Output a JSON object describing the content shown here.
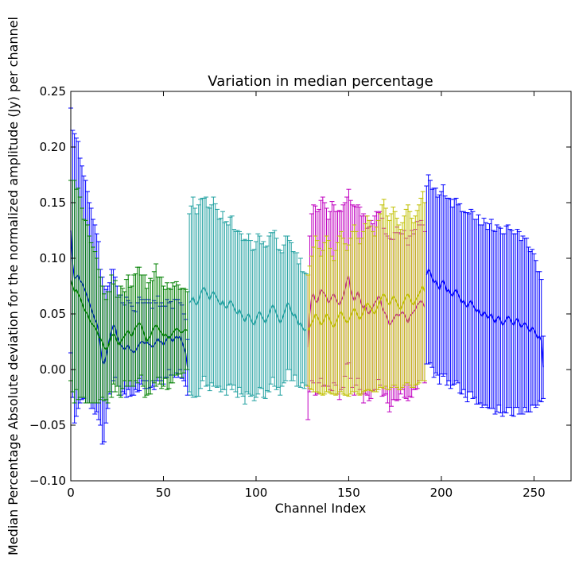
{
  "chart_data": {
    "type": "line",
    "title": "Variation in median percentage",
    "xlabel": "Channel Index",
    "ylabel": "Median Percentage Absolute deviation for the normalized amplitude (Jy) per channel",
    "xlim": [
      0,
      270
    ],
    "ylim": [
      -0.1,
      0.25
    ],
    "xticks": [
      0,
      50,
      100,
      150,
      200,
      250
    ],
    "xtick_labels": [
      "0",
      "50",
      "100",
      "150",
      "200",
      "250"
    ],
    "yticks": [
      -0.1,
      -0.05,
      0.0,
      0.05,
      0.1,
      0.15,
      0.2,
      0.25
    ],
    "ytick_labels": [
      "−0.10",
      "−0.05",
      "0.00",
      "0.05",
      "0.10",
      "0.15",
      "0.20",
      "0.25"
    ],
    "grid": false,
    "error_bars": true,
    "series": [
      {
        "color": "#0000ff",
        "x_start": 0,
        "values": [
          0.125,
          0.095,
          0.082,
          0.083,
          0.085,
          0.08,
          0.078,
          0.074,
          0.07,
          0.065,
          0.06,
          0.055,
          0.05,
          0.045,
          0.042,
          0.035,
          0.02,
          0.008,
          0.005,
          0.012,
          0.02,
          0.028,
          0.035,
          0.04,
          0.038,
          0.03,
          0.025,
          0.022,
          0.02,
          0.018,
          0.02,
          0.022,
          0.018,
          0.017,
          0.015,
          0.017,
          0.02,
          0.023,
          0.025,
          0.025,
          0.023,
          0.025,
          0.023,
          0.022,
          0.02,
          0.022,
          0.025,
          0.028,
          0.025,
          0.025,
          0.022,
          0.025,
          0.028,
          0.03,
          0.028,
          0.025,
          0.028,
          0.03,
          0.028,
          0.03,
          0.025,
          0.02,
          0.015,
          0.002
        ],
        "errors": [
          0.11,
          0.12,
          0.13,
          0.125,
          0.12,
          0.11,
          0.105,
          0.1,
          0.1,
          0.095,
          0.09,
          0.09,
          0.085,
          0.085,
          0.08,
          0.08,
          0.07,
          0.075,
          0.07,
          0.06,
          0.055,
          0.05,
          0.055,
          0.05,
          0.045,
          0.045,
          0.04,
          0.045,
          0.04,
          0.04,
          0.045,
          0.04,
          0.042,
          0.04,
          0.038,
          0.035,
          0.04,
          0.042,
          0.038,
          0.035,
          0.04,
          0.035,
          0.04,
          0.038,
          0.035,
          0.04,
          0.035,
          0.038,
          0.032,
          0.035,
          0.035,
          0.032,
          0.035,
          0.03,
          0.033,
          0.03,
          0.035,
          0.033,
          0.035,
          0.03,
          0.033,
          0.03,
          0.03,
          0.025
        ]
      },
      {
        "color": "#008000",
        "x_start": 0,
        "values": [
          0.08,
          0.075,
          0.07,
          0.072,
          0.068,
          0.065,
          0.06,
          0.055,
          0.052,
          0.05,
          0.045,
          0.042,
          0.04,
          0.038,
          0.035,
          0.03,
          0.028,
          0.025,
          0.02,
          0.018,
          0.02,
          0.025,
          0.03,
          0.032,
          0.03,
          0.025,
          0.022,
          0.025,
          0.028,
          0.03,
          0.033,
          0.035,
          0.032,
          0.03,
          0.035,
          0.038,
          0.04,
          0.042,
          0.04,
          0.035,
          0.03,
          0.025,
          0.028,
          0.03,
          0.035,
          0.038,
          0.04,
          0.038,
          0.035,
          0.033,
          0.03,
          0.032,
          0.03,
          0.028,
          0.03,
          0.033,
          0.035,
          0.037,
          0.036,
          0.034,
          0.033,
          0.035,
          0.036,
          0.035
        ],
        "errors": [
          0.09,
          0.095,
          0.1,
          0.09,
          0.095,
          0.09,
          0.085,
          0.08,
          0.082,
          0.08,
          0.075,
          0.072,
          0.07,
          0.068,
          0.065,
          0.06,
          0.055,
          0.05,
          0.048,
          0.045,
          0.05,
          0.045,
          0.055,
          0.045,
          0.05,
          0.04,
          0.045,
          0.05,
          0.045,
          0.04,
          0.048,
          0.05,
          0.042,
          0.045,
          0.05,
          0.048,
          0.052,
          0.05,
          0.045,
          0.05,
          0.055,
          0.048,
          0.05,
          0.052,
          0.045,
          0.05,
          0.055,
          0.045,
          0.048,
          0.05,
          0.045,
          0.04,
          0.048,
          0.045,
          0.042,
          0.045,
          0.04,
          0.042,
          0.04,
          0.038,
          0.04,
          0.038,
          0.036,
          0.035
        ]
      },
      {
        "color": "#20a0a0",
        "x_start": 64,
        "values": [
          0.06,
          0.062,
          0.065,
          0.06,
          0.058,
          0.062,
          0.068,
          0.072,
          0.074,
          0.07,
          0.066,
          0.063,
          0.068,
          0.07,
          0.067,
          0.064,
          0.06,
          0.058,
          0.062,
          0.057,
          0.055,
          0.058,
          0.062,
          0.06,
          0.056,
          0.052,
          0.05,
          0.054,
          0.05,
          0.046,
          0.043,
          0.048,
          0.05,
          0.046,
          0.042,
          0.04,
          0.045,
          0.05,
          0.052,
          0.048,
          0.045,
          0.042,
          0.046,
          0.05,
          0.055,
          0.058,
          0.055,
          0.05,
          0.046,
          0.042,
          0.045,
          0.05,
          0.055,
          0.06,
          0.058,
          0.052,
          0.048,
          0.05,
          0.045,
          0.04,
          0.042,
          0.038,
          0.035,
          0.036
        ],
        "errors": [
          0.08,
          0.085,
          0.09,
          0.085,
          0.082,
          0.086,
          0.085,
          0.082,
          0.08,
          0.085,
          0.08,
          0.082,
          0.08,
          0.085,
          0.082,
          0.08,
          0.075,
          0.078,
          0.08,
          0.075,
          0.078,
          0.072,
          0.075,
          0.078,
          0.07,
          0.072,
          0.075,
          0.07,
          0.072,
          0.07,
          0.074,
          0.068,
          0.072,
          0.07,
          0.065,
          0.068,
          0.07,
          0.072,
          0.068,
          0.065,
          0.07,
          0.068,
          0.065,
          0.07,
          0.068,
          0.065,
          0.07,
          0.068,
          0.062,
          0.065,
          0.06,
          0.062,
          0.065,
          0.06,
          0.058,
          0.062,
          0.058,
          0.055,
          0.06,
          0.055,
          0.058,
          0.05,
          0.052,
          0.05
        ]
      },
      {
        "color": "#c000c0",
        "x_start": 128,
        "values": [
          0.02,
          0.05,
          0.065,
          0.068,
          0.062,
          0.06,
          0.066,
          0.072,
          0.07,
          0.068,
          0.065,
          0.06,
          0.062,
          0.066,
          0.068,
          0.064,
          0.06,
          0.058,
          0.062,
          0.066,
          0.072,
          0.08,
          0.084,
          0.072,
          0.066,
          0.062,
          0.066,
          0.07,
          0.064,
          0.058,
          0.055,
          0.058,
          0.052,
          0.05,
          0.054,
          0.056,
          0.06,
          0.062,
          0.066,
          0.064,
          0.056,
          0.052,
          0.05,
          0.045,
          0.04,
          0.042,
          0.045,
          0.048,
          0.05,
          0.048,
          0.05,
          0.052,
          0.05,
          0.046,
          0.042,
          0.048,
          0.05,
          0.052,
          0.054,
          0.058,
          0.06,
          0.062,
          0.06,
          0.056
        ],
        "errors": [
          0.065,
          0.07,
          0.075,
          0.08,
          0.085,
          0.082,
          0.078,
          0.08,
          0.085,
          0.082,
          0.08,
          0.075,
          0.08,
          0.085,
          0.08,
          0.078,
          0.082,
          0.085,
          0.08,
          0.082,
          0.078,
          0.075,
          0.078,
          0.08,
          0.082,
          0.085,
          0.08,
          0.078,
          0.082,
          0.08,
          0.085,
          0.08,
          0.075,
          0.078,
          0.08,
          0.075,
          0.078,
          0.08,
          0.075,
          0.078,
          0.08,
          0.075,
          0.072,
          0.075,
          0.078,
          0.075,
          0.072,
          0.075,
          0.078,
          0.075,
          0.072,
          0.07,
          0.075,
          0.072,
          0.07,
          0.072,
          0.075,
          0.07,
          0.072,
          0.075,
          0.07,
          0.072,
          0.07,
          0.068
        ]
      },
      {
        "color": "#c0c000",
        "x_start": 128,
        "values": [
          0.035,
          0.038,
          0.042,
          0.045,
          0.05,
          0.048,
          0.044,
          0.04,
          0.042,
          0.046,
          0.05,
          0.048,
          0.044,
          0.04,
          0.038,
          0.042,
          0.046,
          0.05,
          0.052,
          0.048,
          0.045,
          0.042,
          0.044,
          0.048,
          0.052,
          0.055,
          0.052,
          0.048,
          0.045,
          0.048,
          0.052,
          0.056,
          0.06,
          0.058,
          0.055,
          0.052,
          0.05,
          0.054,
          0.058,
          0.062,
          0.066,
          0.068,
          0.065,
          0.06,
          0.058,
          0.062,
          0.066,
          0.064,
          0.06,
          0.056,
          0.054,
          0.058,
          0.062,
          0.066,
          0.068,
          0.064,
          0.06,
          0.058,
          0.062,
          0.065,
          0.068,
          0.072,
          0.075,
          0.07
        ],
        "errors": [
          0.05,
          0.055,
          0.06,
          0.065,
          0.07,
          0.068,
          0.065,
          0.062,
          0.065,
          0.068,
          0.07,
          0.068,
          0.065,
          0.062,
          0.06,
          0.065,
          0.068,
          0.07,
          0.072,
          0.07,
          0.068,
          0.065,
          0.068,
          0.07,
          0.072,
          0.075,
          0.072,
          0.07,
          0.068,
          0.07,
          0.072,
          0.075,
          0.078,
          0.076,
          0.074,
          0.072,
          0.07,
          0.074,
          0.076,
          0.078,
          0.082,
          0.085,
          0.08,
          0.078,
          0.076,
          0.078,
          0.08,
          0.078,
          0.076,
          0.074,
          0.072,
          0.074,
          0.076,
          0.078,
          0.08,
          0.078,
          0.076,
          0.074,
          0.076,
          0.078,
          0.08,
          0.082,
          0.085,
          0.08
        ]
      },
      {
        "color": "#0000ff",
        "x_start": 192,
        "values": [
          0.085,
          0.09,
          0.088,
          0.082,
          0.078,
          0.08,
          0.075,
          0.072,
          0.078,
          0.08,
          0.076,
          0.07,
          0.072,
          0.068,
          0.066,
          0.07,
          0.072,
          0.068,
          0.064,
          0.06,
          0.062,
          0.058,
          0.056,
          0.06,
          0.062,
          0.058,
          0.055,
          0.052,
          0.054,
          0.05,
          0.048,
          0.052,
          0.05,
          0.046,
          0.048,
          0.05,
          0.045,
          0.042,
          0.046,
          0.048,
          0.044,
          0.04,
          0.042,
          0.045,
          0.048,
          0.046,
          0.042,
          0.04,
          0.044,
          0.046,
          0.042,
          0.038,
          0.04,
          0.042,
          0.04,
          0.036,
          0.034,
          0.038,
          0.036,
          0.032,
          0.028,
          0.03,
          0.026,
          0.002
        ],
        "errors": [
          0.08,
          0.085,
          0.082,
          0.08,
          0.085,
          0.083,
          0.08,
          0.085,
          0.082,
          0.086,
          0.08,
          0.084,
          0.082,
          0.085,
          0.08,
          0.083,
          0.082,
          0.08,
          0.085,
          0.082,
          0.08,
          0.083,
          0.085,
          0.08,
          0.082,
          0.084,
          0.08,
          0.083,
          0.085,
          0.08,
          0.082,
          0.084,
          0.082,
          0.08,
          0.083,
          0.085,
          0.08,
          0.082,
          0.084,
          0.08,
          0.083,
          0.082,
          0.08,
          0.084,
          0.082,
          0.08,
          0.083,
          0.082,
          0.078,
          0.08,
          0.082,
          0.078,
          0.08,
          0.076,
          0.078,
          0.074,
          0.072,
          0.07,
          0.068,
          0.066,
          0.06,
          0.058,
          0.055,
          0.028
        ]
      }
    ]
  }
}
